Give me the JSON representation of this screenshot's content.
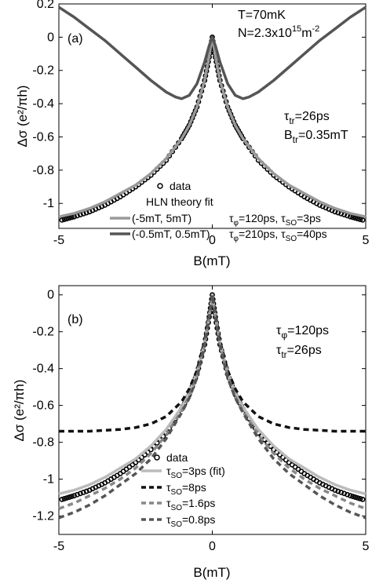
{
  "chart_data": [
    {
      "type": "line",
      "panel_label": "(a)",
      "xlabel": "B(mT)",
      "ylabel": "Δσ (e²/πh)",
      "xlim": [
        -5,
        5
      ],
      "ylim": [
        -1.15,
        0.2
      ],
      "xticks": [
        -5,
        0,
        5
      ],
      "yticks": [
        0.2,
        0,
        -0.2,
        -0.4,
        -0.6,
        -0.8,
        -1
      ],
      "grid": false,
      "annotations": {
        "temperature": "T=70mK",
        "density": "N=2.3x10",
        "density_exp": "15",
        "density_unit": "m",
        "density_unit_exp": "-2",
        "tau_tr": "=26ps",
        "b_tr": "=0.35mT"
      },
      "legend": {
        "placement": "bottom-center",
        "data_label": "data",
        "fit_title": "HLN theory fit",
        "entries": [
          {
            "range": "(-5mT, 5mT)",
            "params": "τφ=120ps, τso=3ps",
            "color": "#999999"
          },
          {
            "range": "(-0.5mT, 0.5mT)",
            "params": "τφ=210ps, τso=40ps",
            "color": "#555555"
          }
        ]
      },
      "series": [
        {
          "kind": "scatter",
          "color": "#000000",
          "x": [
            -4.9,
            -4.5,
            -4.0,
            -3.5,
            -3.0,
            -2.5,
            -2.0,
            -1.5,
            -1.0,
            -0.75,
            -0.5,
            -0.25,
            -0.1,
            0,
            0.1,
            0.25,
            0.5,
            0.75,
            1.0,
            1.5,
            2.0,
            2.5,
            3.0,
            3.5,
            4.0,
            4.5,
            4.9
          ],
          "y": [
            -1.1,
            -1.08,
            -1.05,
            -1.01,
            -0.96,
            -0.9,
            -0.83,
            -0.74,
            -0.61,
            -0.53,
            -0.42,
            -0.26,
            -0.12,
            0,
            -0.12,
            -0.26,
            -0.42,
            -0.53,
            -0.61,
            -0.74,
            -0.83,
            -0.9,
            -0.96,
            -1.01,
            -1.05,
            -1.08,
            -1.1
          ]
        },
        {
          "kind": "line",
          "color": "#999999",
          "x": [
            -5,
            -4.5,
            -4,
            -3.5,
            -3,
            -2.5,
            -2,
            -1.5,
            -1,
            -0.75,
            -0.5,
            -0.25,
            -0.1,
            0,
            0.1,
            0.25,
            0.5,
            0.75,
            1,
            1.5,
            2,
            2.5,
            3,
            3.5,
            4,
            4.5,
            5
          ],
          "y": [
            -1.08,
            -1.06,
            -1.03,
            -0.99,
            -0.94,
            -0.89,
            -0.82,
            -0.73,
            -0.61,
            -0.53,
            -0.42,
            -0.26,
            -0.11,
            0,
            -0.11,
            -0.26,
            -0.42,
            -0.53,
            -0.61,
            -0.73,
            -0.82,
            -0.89,
            -0.94,
            -0.99,
            -1.03,
            -1.06,
            -1.08
          ]
        },
        {
          "kind": "line",
          "color": "#555555",
          "x": [
            -5,
            -4.5,
            -4,
            -3.5,
            -3,
            -2.5,
            -2,
            -1.5,
            -1.2,
            -1,
            -0.75,
            -0.5,
            -0.25,
            -0.1,
            0,
            0.1,
            0.25,
            0.5,
            0.75,
            1,
            1.2,
            1.5,
            2,
            2.5,
            3,
            3.5,
            4,
            4.5,
            5
          ],
          "y": [
            0.18,
            0.12,
            0.05,
            -0.02,
            -0.1,
            -0.18,
            -0.26,
            -0.33,
            -0.36,
            -0.37,
            -0.35,
            -0.28,
            -0.15,
            -0.05,
            0,
            -0.05,
            -0.15,
            -0.28,
            -0.35,
            -0.37,
            -0.36,
            -0.33,
            -0.26,
            -0.18,
            -0.1,
            -0.02,
            0.05,
            0.12,
            0.18
          ]
        }
      ]
    },
    {
      "type": "line",
      "panel_label": "(b)",
      "xlabel": "B(mT)",
      "ylabel": "Δσ (e²/πh)",
      "xlim": [
        -5,
        5
      ],
      "ylim": [
        -1.3,
        0.05
      ],
      "xticks": [
        -5,
        0,
        5
      ],
      "yticks": [
        0,
        -0.2,
        -0.4,
        -0.6,
        -0.8,
        -1,
        -1.2
      ],
      "grid": false,
      "annotations": {
        "tau_phi": "=120ps",
        "tau_tr": "=26ps"
      },
      "legend": {
        "placement": "bottom-center",
        "data_label": "data",
        "entries": [
          {
            "label": "=3ps (fit)",
            "color": "#bbbbbb",
            "dash": "solid"
          },
          {
            "label": "=8ps",
            "color": "#111111",
            "dash": "dash"
          },
          {
            "label": "=1.6ps",
            "color": "#888888",
            "dash": "dash"
          },
          {
            "label": "=0.8ps",
            "color": "#555555",
            "dash": "dash"
          }
        ]
      },
      "series": [
        {
          "kind": "scatter",
          "color": "#000000",
          "x": [
            -4.9,
            -4.5,
            -4.0,
            -3.5,
            -3.0,
            -2.5,
            -2.0,
            -1.5,
            -1.0,
            -0.75,
            -0.5,
            -0.25,
            -0.1,
            0,
            0.1,
            0.25,
            0.5,
            0.75,
            1.0,
            1.5,
            2.0,
            2.5,
            3.0,
            3.5,
            4.0,
            4.5,
            4.9
          ],
          "y": [
            -1.11,
            -1.09,
            -1.06,
            -1.02,
            -0.97,
            -0.91,
            -0.84,
            -0.75,
            -0.62,
            -0.54,
            -0.43,
            -0.27,
            -0.12,
            0,
            -0.12,
            -0.27,
            -0.43,
            -0.54,
            -0.62,
            -0.75,
            -0.84,
            -0.91,
            -0.97,
            -1.02,
            -1.06,
            -1.09,
            -1.11
          ]
        },
        {
          "kind": "line",
          "label_key": "tau_so_3",
          "color": "#bbbbbb",
          "dash": "solid",
          "x": [
            -5,
            -4.5,
            -4,
            -3.5,
            -3,
            -2.5,
            -2,
            -1.5,
            -1,
            -0.75,
            -0.5,
            -0.25,
            -0.1,
            0,
            0.1,
            0.25,
            0.5,
            0.75,
            1,
            1.5,
            2,
            2.5,
            3,
            3.5,
            4,
            4.5,
            5
          ],
          "y": [
            -1.08,
            -1.06,
            -1.03,
            -0.99,
            -0.94,
            -0.89,
            -0.82,
            -0.73,
            -0.61,
            -0.53,
            -0.42,
            -0.26,
            -0.11,
            0,
            -0.11,
            -0.26,
            -0.42,
            -0.53,
            -0.61,
            -0.73,
            -0.82,
            -0.89,
            -0.94,
            -0.99,
            -1.03,
            -1.06,
            -1.08
          ]
        },
        {
          "kind": "line",
          "label_key": "tau_so_8",
          "color": "#111111",
          "dash": "dash",
          "x": [
            -5,
            -4.5,
            -4,
            -3.5,
            -3,
            -2.5,
            -2,
            -1.5,
            -1,
            -0.75,
            -0.5,
            -0.25,
            -0.1,
            0,
            0.1,
            0.25,
            0.5,
            0.75,
            1,
            1.5,
            2,
            2.5,
            3,
            3.5,
            4,
            4.5,
            5
          ],
          "y": [
            -0.74,
            -0.74,
            -0.74,
            -0.735,
            -0.73,
            -0.72,
            -0.7,
            -0.66,
            -0.58,
            -0.51,
            -0.41,
            -0.25,
            -0.1,
            0,
            -0.1,
            -0.25,
            -0.41,
            -0.51,
            -0.58,
            -0.66,
            -0.7,
            -0.72,
            -0.73,
            -0.735,
            -0.74,
            -0.74,
            -0.74
          ]
        },
        {
          "kind": "line",
          "label_key": "tau_so_1.6",
          "color": "#888888",
          "dash": "dash",
          "x": [
            -5,
            -4.5,
            -4,
            -3.5,
            -3,
            -2.5,
            -2,
            -1.5,
            -1,
            -0.75,
            -0.5,
            -0.25,
            -0.1,
            0,
            0.1,
            0.25,
            0.5,
            0.75,
            1,
            1.5,
            2,
            2.5,
            3,
            3.5,
            4,
            4.5,
            5
          ],
          "y": [
            -1.16,
            -1.13,
            -1.09,
            -1.05,
            -1.0,
            -0.94,
            -0.86,
            -0.76,
            -0.63,
            -0.55,
            -0.44,
            -0.27,
            -0.12,
            0,
            -0.12,
            -0.27,
            -0.44,
            -0.55,
            -0.63,
            -0.76,
            -0.86,
            -0.94,
            -1.0,
            -1.05,
            -1.09,
            -1.13,
            -1.16
          ]
        },
        {
          "kind": "line",
          "label_key": "tau_so_0.8",
          "color": "#555555",
          "dash": "dash",
          "x": [
            -5,
            -4.5,
            -4,
            -3.5,
            -3,
            -2.5,
            -2,
            -1.5,
            -1,
            -0.75,
            -0.5,
            -0.25,
            -0.1,
            0,
            0.1,
            0.25,
            0.5,
            0.75,
            1,
            1.5,
            2,
            2.5,
            3,
            3.5,
            4,
            4.5,
            5
          ],
          "y": [
            -1.21,
            -1.18,
            -1.14,
            -1.09,
            -1.03,
            -0.97,
            -0.89,
            -0.78,
            -0.64,
            -0.56,
            -0.45,
            -0.28,
            -0.12,
            0,
            -0.12,
            -0.28,
            -0.45,
            -0.56,
            -0.64,
            -0.78,
            -0.89,
            -0.97,
            -1.03,
            -1.09,
            -1.14,
            -1.18,
            -1.21
          ]
        }
      ]
    }
  ]
}
